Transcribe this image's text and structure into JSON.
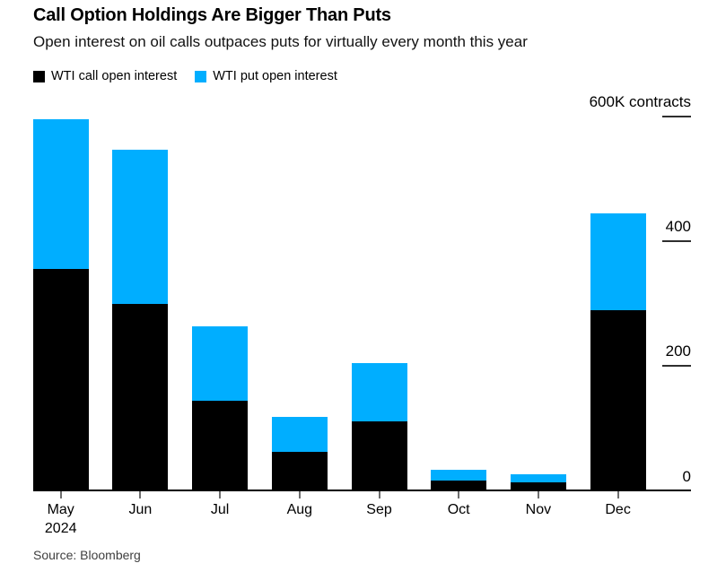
{
  "header": {
    "title": "Call Option Holdings Are Bigger Than Puts",
    "subtitle": "Open interest on oil calls outpaces puts for virtually every month this year"
  },
  "legend": {
    "items": [
      {
        "label": "WTI call open interest",
        "color": "#000000"
      },
      {
        "label": "WTI put open interest",
        "color": "#00aeff"
      }
    ]
  },
  "chart_data": {
    "type": "bar",
    "stacked": true,
    "title": "Call Option Holdings Are Bigger Than Puts",
    "subtitle": "Open interest on oil calls outpaces puts for virtually every month this year",
    "categories": [
      "May",
      "Jun",
      "Jul",
      "Aug",
      "Sep",
      "Oct",
      "Nov",
      "Dec"
    ],
    "x_first_category_year": "2024",
    "series": [
      {
        "name": "WTI call open interest",
        "color": "#000000",
        "values": [
          355,
          300,
          145,
          62,
          111,
          17,
          13,
          290
        ]
      },
      {
        "name": "WTI put open interest",
        "color": "#00aeff",
        "values": [
          240,
          247,
          118,
          57,
          94,
          17,
          13,
          155
        ]
      }
    ],
    "unit": "K contracts",
    "ylim": [
      0,
      600
    ],
    "y_ticks": [
      {
        "value": 600,
        "label": "600K contracts"
      },
      {
        "value": 400,
        "label": "400"
      },
      {
        "value": 200,
        "label": "200"
      },
      {
        "value": 0,
        "label": "0"
      }
    ],
    "grid": false,
    "y_axis_side": "right",
    "legend_position": "top-left"
  },
  "footer": {
    "source": "Source: Bloomberg"
  }
}
